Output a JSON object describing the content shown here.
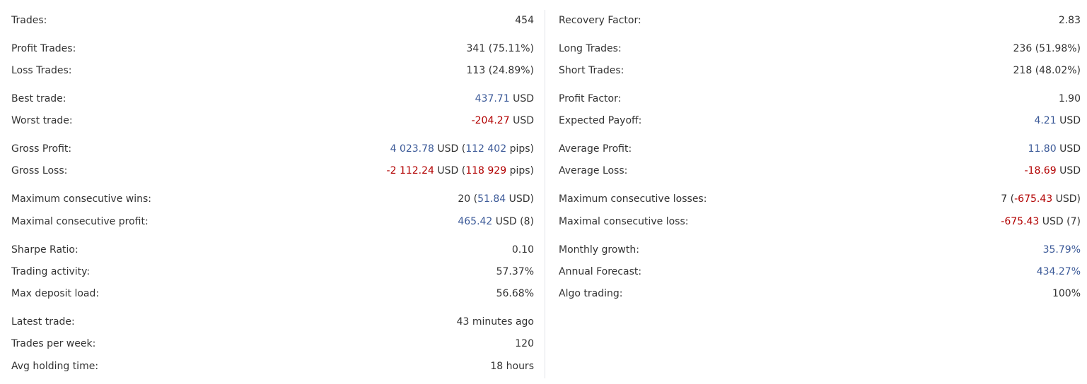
{
  "colors": {
    "text": "#333333",
    "positive": "#3c5a98",
    "negative": "#b20000",
    "divider": "#e1e4e8"
  },
  "left": [
    {
      "label": "Trades:",
      "parts": [
        {
          "t": "454"
        }
      ]
    },
    {
      "label": "Profit Trades:",
      "parts": [
        {
          "t": "341 (75.11%)"
        }
      ]
    },
    {
      "label": "Loss Trades:",
      "parts": [
        {
          "t": "113 (24.89%)"
        }
      ]
    },
    {
      "label": "Best trade:",
      "parts": [
        {
          "t": "437.71",
          "c": "pos"
        },
        {
          "t": " USD"
        }
      ]
    },
    {
      "label": "Worst trade:",
      "parts": [
        {
          "t": "-204.27",
          "c": "neg"
        },
        {
          "t": " USD"
        }
      ]
    },
    {
      "label": "Gross Profit:",
      "parts": [
        {
          "t": "4 023.78",
          "c": "pos"
        },
        {
          "t": " USD ("
        },
        {
          "t": "112 402",
          "c": "pos"
        },
        {
          "t": " pips)"
        }
      ]
    },
    {
      "label": "Gross Loss:",
      "parts": [
        {
          "t": "-2 112.24",
          "c": "neg"
        },
        {
          "t": " USD ("
        },
        {
          "t": "118 929",
          "c": "neg"
        },
        {
          "t": " pips)"
        }
      ]
    },
    {
      "label": "Maximum consecutive wins:",
      "parts": [
        {
          "t": "20 ("
        },
        {
          "t": "51.84",
          "c": "pos"
        },
        {
          "t": " USD)"
        }
      ]
    },
    {
      "label": "Maximal consecutive profit:",
      "parts": [
        {
          "t": "465.42",
          "c": "pos"
        },
        {
          "t": " USD (8)"
        }
      ]
    },
    {
      "label": "Sharpe Ratio:",
      "parts": [
        {
          "t": "0.10"
        }
      ]
    },
    {
      "label": "Trading activity:",
      "parts": [
        {
          "t": "57.37%"
        }
      ]
    },
    {
      "label": "Max deposit load:",
      "parts": [
        {
          "t": "56.68%"
        }
      ]
    },
    {
      "label": "Latest trade:",
      "parts": [
        {
          "t": "43 minutes ago"
        }
      ]
    },
    {
      "label": "Trades per week:",
      "parts": [
        {
          "t": "120"
        }
      ]
    },
    {
      "label": "Avg holding time:",
      "parts": [
        {
          "t": "18 hours"
        }
      ]
    }
  ],
  "right": [
    {
      "label": "Recovery Factor:",
      "parts": [
        {
          "t": "2.83"
        }
      ]
    },
    {
      "label": "Long Trades:",
      "parts": [
        {
          "t": "236 (51.98%)"
        }
      ]
    },
    {
      "label": "Short Trades:",
      "parts": [
        {
          "t": "218 (48.02%)"
        }
      ]
    },
    {
      "label": "Profit Factor:",
      "parts": [
        {
          "t": "1.90"
        }
      ]
    },
    {
      "label": "Expected Payoff:",
      "parts": [
        {
          "t": "4.21",
          "c": "pos"
        },
        {
          "t": " USD"
        }
      ]
    },
    {
      "label": "Average Profit:",
      "parts": [
        {
          "t": "11.80",
          "c": "pos"
        },
        {
          "t": " USD"
        }
      ]
    },
    {
      "label": "Average Loss:",
      "parts": [
        {
          "t": "-18.69",
          "c": "neg"
        },
        {
          "t": " USD"
        }
      ]
    },
    {
      "label": "Maximum consecutive losses:",
      "parts": [
        {
          "t": "7 ("
        },
        {
          "t": "-675.43",
          "c": "neg"
        },
        {
          "t": " USD)"
        }
      ]
    },
    {
      "label": "Maximal consecutive loss:",
      "parts": [
        {
          "t": "-675.43",
          "c": "neg"
        },
        {
          "t": " USD (7)"
        }
      ]
    },
    {
      "label": "Monthly growth:",
      "parts": [
        {
          "t": "35.79%",
          "c": "pos"
        }
      ]
    },
    {
      "label": "Annual Forecast:",
      "parts": [
        {
          "t": "434.27%",
          "c": "pos"
        }
      ]
    },
    {
      "label": "Algo trading:",
      "parts": [
        {
          "t": "100%"
        }
      ]
    }
  ]
}
